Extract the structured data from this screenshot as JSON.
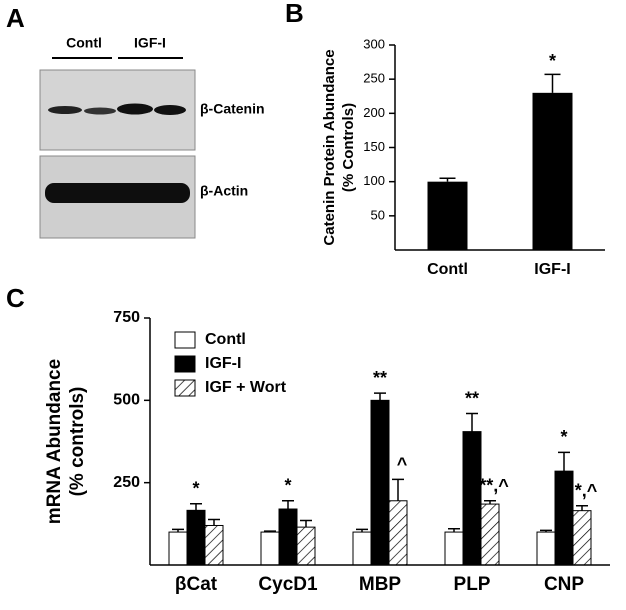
{
  "blot": {
    "panel_label": "A",
    "lanes": [
      "Contl",
      "IGF-I"
    ],
    "bands": [
      "β-Catenin",
      "β-Actin"
    ]
  },
  "chart_data": [
    {
      "type": "bar",
      "panel_label": "B",
      "ylabel": [
        "Catenin Protein Abundance",
        "(% Controls)"
      ],
      "categories": [
        "Contl",
        "IGF-I"
      ],
      "values": [
        100,
        230
      ],
      "errors": [
        5,
        27
      ],
      "annotations": [
        null,
        "*"
      ],
      "color": "#000000",
      "ylim": [
        0,
        300
      ],
      "yticks": [
        50,
        100,
        150,
        200,
        250,
        300
      ]
    },
    {
      "type": "grouped_bar",
      "panel_label": "C",
      "ylabel": [
        "mRNA Abundance",
        "(% controls)"
      ],
      "categories": [
        "βCat",
        "CycD1",
        "MBP",
        "PLP",
        "CNP"
      ],
      "series": [
        {
          "name": "Contl",
          "color": "#ffffff",
          "hatch": false,
          "values": [
            100,
            100,
            100,
            100,
            100
          ],
          "errors": [
            8,
            3,
            8,
            10,
            5
          ],
          "annotations": [
            null,
            null,
            null,
            null,
            null
          ]
        },
        {
          "name": "IGF-I",
          "color": "#000000",
          "hatch": false,
          "values": [
            166,
            170,
            500,
            405,
            285
          ],
          "errors": [
            20,
            25,
            22,
            55,
            57
          ],
          "annotations": [
            "*",
            "*",
            "**",
            "**",
            "*"
          ]
        },
        {
          "name": "IGF + Wort",
          "color": "#ffffff",
          "hatch": true,
          "values": [
            120,
            115,
            195,
            185,
            165
          ],
          "errors": [
            18,
            20,
            65,
            10,
            15
          ],
          "annotations": [
            null,
            null,
            "^",
            "**,^",
            "*,^"
          ]
        }
      ],
      "legend": "upper left",
      "ylim": [
        0,
        750
      ],
      "yticks": [
        250,
        500,
        750
      ]
    }
  ]
}
